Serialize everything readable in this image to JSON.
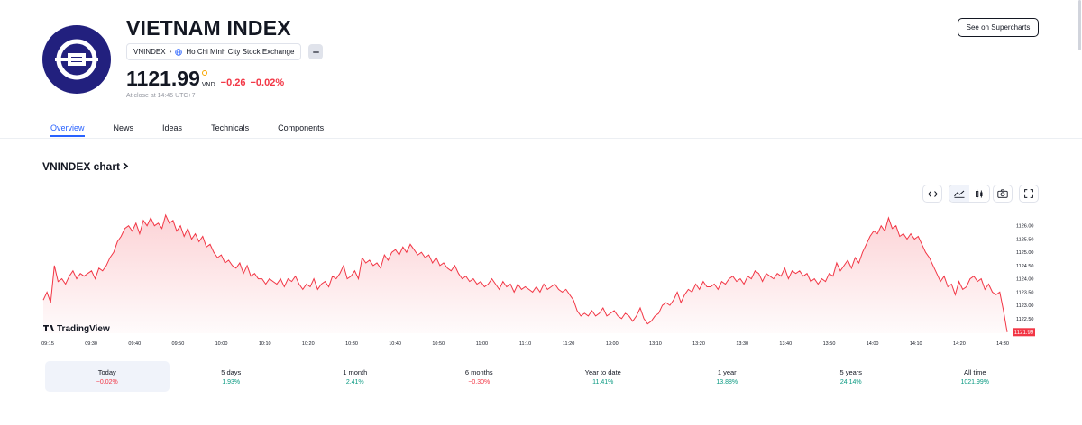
{
  "header": {
    "title": "VIETNAM INDEX",
    "symbol": "VNINDEX",
    "separator": "•",
    "exchange": "Ho Chi Minh City Stock Exchange",
    "price": "1121.99",
    "currency": "VND",
    "change": "−0.26",
    "change_pct": "−0.02%",
    "close_note": "At close at 14:45 UTC+7",
    "supercharts_label": "See on Supercharts"
  },
  "tabs": [
    {
      "label": "Overview",
      "active": true
    },
    {
      "label": "News"
    },
    {
      "label": "Ideas"
    },
    {
      "label": "Technicals"
    },
    {
      "label": "Components"
    }
  ],
  "chart_section": {
    "title": "VNINDEX chart",
    "watermark": "TradingView",
    "tools": [
      "code-icon",
      "area-chart-icon",
      "candle-chart-icon",
      "camera-icon",
      "fullscreen-icon"
    ]
  },
  "chart_data": {
    "type": "area",
    "x_ticks": [
      "09:15",
      "09:30",
      "09:40",
      "09:50",
      "10:00",
      "10:10",
      "10:20",
      "10:30",
      "10:40",
      "10:50",
      "11:00",
      "11:10",
      "11:20",
      "13:00",
      "13:10",
      "13:20",
      "13:30",
      "13:40",
      "13:50",
      "14:00",
      "14:10",
      "14:20",
      "14:30"
    ],
    "y_ticks": [
      "1126.00",
      "1125.50",
      "1125.00",
      "1124.50",
      "1124.00",
      "1123.50",
      "1123.00",
      "1122.50"
    ],
    "ylim": [
      1121.95,
      1126.5
    ],
    "last_label": "1121.99",
    "line_color": "#f23645",
    "values": [
      1123.2,
      1123.5,
      1123.1,
      1124.5,
      1123.9,
      1124.0,
      1123.8,
      1124.1,
      1124.3,
      1124.0,
      1124.2,
      1124.1,
      1124.2,
      1124.3,
      1124.0,
      1124.4,
      1124.3,
      1124.5,
      1124.8,
      1125.0,
      1125.4,
      1125.6,
      1125.9,
      1126.0,
      1125.8,
      1126.1,
      1125.7,
      1126.2,
      1126.0,
      1126.3,
      1126.0,
      1126.1,
      1125.9,
      1126.4,
      1126.1,
      1126.2,
      1125.8,
      1126.0,
      1125.6,
      1125.9,
      1125.5,
      1125.7,
      1125.4,
      1125.6,
      1125.2,
      1125.3,
      1125.0,
      1124.8,
      1124.9,
      1124.6,
      1124.7,
      1124.5,
      1124.4,
      1124.6,
      1124.2,
      1124.5,
      1124.1,
      1124.2,
      1124.0,
      1124.0,
      1123.8,
      1124.0,
      1123.9,
      1123.8,
      1124.0,
      1123.7,
      1124.0,
      1123.9,
      1124.1,
      1123.8,
      1123.6,
      1123.8,
      1123.7,
      1124.0,
      1123.6,
      1123.8,
      1123.9,
      1123.7,
      1124.1,
      1124.0,
      1124.2,
      1124.5,
      1124.0,
      1124.1,
      1124.3,
      1124.0,
      1124.8,
      1124.6,
      1124.7,
      1124.5,
      1124.6,
      1124.4,
      1124.9,
      1124.7,
      1125.0,
      1125.1,
      1124.9,
      1125.2,
      1125.0,
      1125.3,
      1125.1,
      1124.9,
      1125.0,
      1124.8,
      1124.9,
      1124.6,
      1124.8,
      1124.5,
      1124.6,
      1124.4,
      1124.3,
      1124.5,
      1124.2,
      1124.0,
      1124.1,
      1123.9,
      1124.0,
      1123.8,
      1123.9,
      1123.7,
      1123.8,
      1124.0,
      1123.8,
      1123.6,
      1123.9,
      1123.7,
      1123.8,
      1123.5,
      1123.8,
      1123.6,
      1123.7,
      1123.6,
      1123.5,
      1123.7,
      1123.5,
      1123.8,
      1123.6,
      1123.7,
      1123.8,
      1123.6,
      1123.5,
      1123.6,
      1123.4,
      1123.2,
      1122.8,
      1122.6,
      1122.7,
      1122.6,
      1122.8,
      1122.6,
      1122.7,
      1122.9,
      1122.6,
      1122.7,
      1122.8,
      1122.6,
      1122.5,
      1122.7,
      1122.6,
      1122.4,
      1122.6,
      1122.9,
      1122.5,
      1122.3,
      1122.4,
      1122.6,
      1122.7,
      1123.0,
      1123.1,
      1123.0,
      1123.2,
      1123.5,
      1123.1,
      1123.4,
      1123.6,
      1123.5,
      1123.8,
      1123.6,
      1123.9,
      1123.7,
      1123.7,
      1123.8,
      1123.6,
      1123.9,
      1123.8,
      1124.0,
      1124.1,
      1123.9,
      1124.0,
      1123.8,
      1124.1,
      1124.0,
      1124.3,
      1124.2,
      1123.9,
      1124.2,
      1124.1,
      1124.0,
      1124.2,
      1124.1,
      1124.4,
      1124.0,
      1124.3,
      1124.2,
      1124.3,
      1124.1,
      1124.2,
      1123.9,
      1124.0,
      1123.8,
      1124.0,
      1123.9,
      1124.2,
      1124.1,
      1124.6,
      1124.3,
      1124.5,
      1124.7,
      1124.4,
      1124.8,
      1124.6,
      1125.0,
      1125.3,
      1125.6,
      1125.8,
      1125.7,
      1126.0,
      1125.8,
      1126.3,
      1125.9,
      1126.0,
      1125.6,
      1125.7,
      1125.5,
      1125.7,
      1125.5,
      1125.6,
      1125.3,
      1125.0,
      1124.8,
      1124.5,
      1124.2,
      1123.9,
      1124.1,
      1123.7,
      1123.8,
      1123.4,
      1123.9,
      1123.6,
      1123.7,
      1124.0,
      1124.1,
      1123.9,
      1124.0,
      1123.6,
      1123.8,
      1123.5,
      1123.4,
      1123.5,
      1122.8,
      1121.99
    ]
  },
  "periods": [
    {
      "label": "Today",
      "value": "−0.02%",
      "sign": "neg",
      "active": true
    },
    {
      "label": "5 days",
      "value": "1.93%",
      "sign": "pos"
    },
    {
      "label": "1 month",
      "value": "2.41%",
      "sign": "pos"
    },
    {
      "label": "6 months",
      "value": "−0.30%",
      "sign": "neg"
    },
    {
      "label": "Year to date",
      "value": "11.41%",
      "sign": "pos"
    },
    {
      "label": "1 year",
      "value": "13.88%",
      "sign": "pos"
    },
    {
      "label": "5 years",
      "value": "24.14%",
      "sign": "pos"
    },
    {
      "label": "All time",
      "value": "1021.99%",
      "sign": "pos"
    }
  ]
}
